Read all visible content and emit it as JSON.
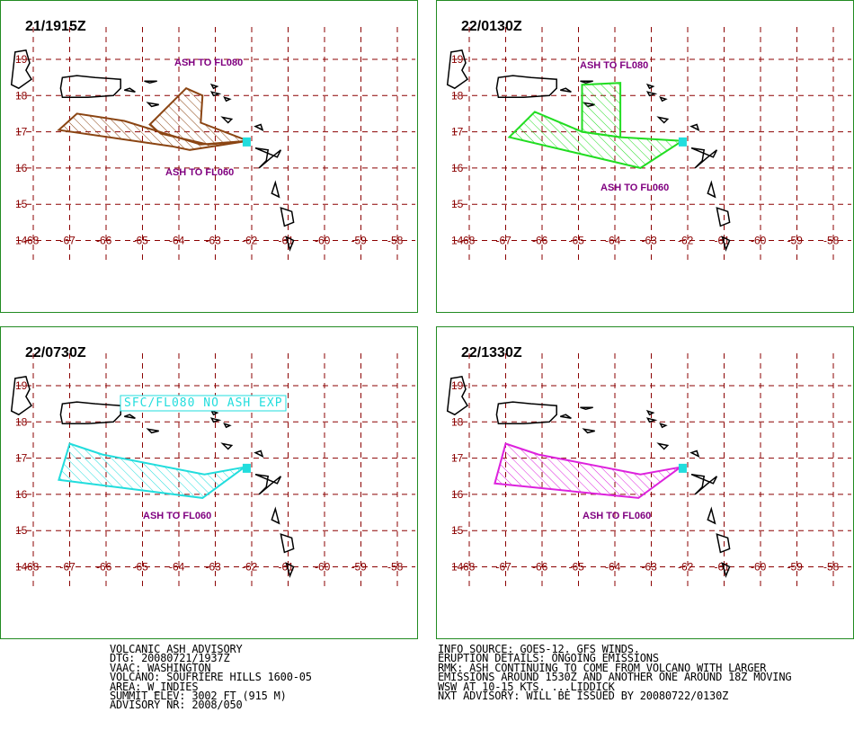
{
  "panels": [
    {
      "time": "21/1915Z",
      "color": "#8B4513",
      "labels": [
        "ASH TO FL080",
        "ASH TO FL060"
      ],
      "label_color": "#800080",
      "boxed_label": false
    },
    {
      "time": "22/0130Z",
      "color": "#22DD22",
      "labels": [
        "ASH TO FL080",
        "ASH TO FL060"
      ],
      "label_color": "#800080",
      "boxed_label": false
    },
    {
      "time": "22/0730Z",
      "color": "#22DDDD",
      "labels": [
        "SFC/FL080 NO ASH EXP",
        "ASH TO FL060"
      ],
      "label_color": "#800080",
      "boxed_label": true
    },
    {
      "time": "22/1330Z",
      "color": "#DD22DD",
      "labels": [
        "ASH TO FL060"
      ],
      "label_color": "#800080",
      "boxed_label": false
    }
  ],
  "axis": {
    "lon_ticks": [
      "-68",
      "-67",
      "-66",
      "-65",
      "-64",
      "-63",
      "-62",
      "-61",
      "-60",
      "-59",
      "-58"
    ],
    "lat_ticks": [
      "19",
      "18",
      "17",
      "16",
      "15",
      "14"
    ],
    "grid_color": "#8B0000"
  },
  "advisory_left": [
    "VOLCANIC ASH ADVISORY",
    "DTG: 20080721/1937Z",
    "VAAC: WASHINGTON",
    "VOLCANO: SOUFRIERE HILLS 1600-05",
    "AREA: W_INDIES",
    "SUMMIT ELEV: 3002 FT (915 M)",
    "ADVISORY NR: 2008/050"
  ],
  "advisory_right": [
    "INFO SOURCE: GOES-12. GFS WINDS.",
    "ERUPTION DETAILS: ONGOING EMISSIONS",
    "RMK: ASH CONTINUING TO COME FROM VOLCANO WITH LARGER",
    "EMISSIONS AROUND 1530Z AND ANOTHER ONE AROUND 18Z MOVING",
    "WSW AT 10-15 KTS. ...LIDDICK",
    "NXT ADVISORY: WILL BE ISSUED BY 20080722/0130Z"
  ]
}
